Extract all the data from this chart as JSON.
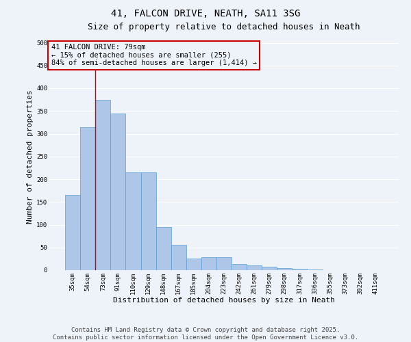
{
  "title_line1": "41, FALCON DRIVE, NEATH, SA11 3SG",
  "title_line2": "Size of property relative to detached houses in Neath",
  "xlabel": "Distribution of detached houses by size in Neath",
  "ylabel": "Number of detached properties",
  "categories": [
    "35sqm",
    "54sqm",
    "73sqm",
    "91sqm",
    "110sqm",
    "129sqm",
    "148sqm",
    "167sqm",
    "185sqm",
    "204sqm",
    "223sqm",
    "242sqm",
    "261sqm",
    "279sqm",
    "298sqm",
    "317sqm",
    "336sqm",
    "355sqm",
    "373sqm",
    "392sqm",
    "411sqm"
  ],
  "values": [
    165,
    315,
    375,
    345,
    215,
    215,
    95,
    55,
    25,
    28,
    28,
    14,
    11,
    8,
    5,
    3,
    1,
    0,
    0,
    0,
    0
  ],
  "bar_color": "#aec6e8",
  "bar_edge_color": "#5a9fd4",
  "bg_color": "#eef2f9",
  "grid_color": "#ffffff",
  "annotation_box_color": "#cc0000",
  "vline_color": "#cc0000",
  "vline_x_index": 2,
  "annotation_title": "41 FALCON DRIVE: 79sqm",
  "annotation_line2": "← 15% of detached houses are smaller (255)",
  "annotation_line3": "84% of semi-detached houses are larger (1,414) →",
  "ylim": [
    0,
    500
  ],
  "yticks": [
    0,
    50,
    100,
    150,
    200,
    250,
    300,
    350,
    400,
    450,
    500
  ],
  "footer_line1": "Contains HM Land Registry data © Crown copyright and database right 2025.",
  "footer_line2": "Contains public sector information licensed under the Open Government Licence v3.0.",
  "title_fontsize": 10,
  "subtitle_fontsize": 9,
  "tick_fontsize": 6.5,
  "label_fontsize": 8,
  "footer_fontsize": 6.5,
  "annotation_fontsize": 7.5
}
